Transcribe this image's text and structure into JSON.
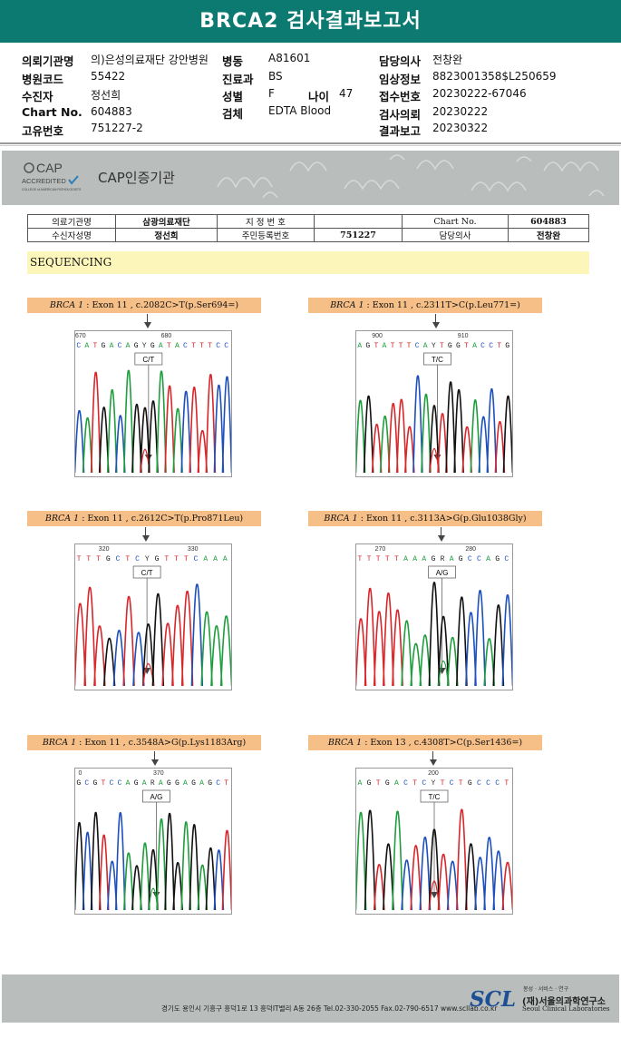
{
  "header": {
    "title": "BRCA2 검사결과보고서"
  },
  "patient_info": {
    "left": [
      {
        "label": "의뢰기관명",
        "value": "의)은성의료재단 강안병원"
      },
      {
        "label": "병원코드",
        "value": "55422"
      },
      {
        "label": "수진자",
        "value": "정선희"
      },
      {
        "label": "Chart No.",
        "value": "604883"
      },
      {
        "label": "고유번호",
        "value": "751227-2"
      }
    ],
    "middle": [
      {
        "label": "병동",
        "value": "A81601"
      },
      {
        "label": "진료과",
        "value": "BS"
      },
      {
        "label": "성별",
        "value": "F"
      },
      {
        "label": "검체",
        "value": "EDTA Blood"
      }
    ],
    "age": {
      "label": "나이",
      "value": "47"
    },
    "right": [
      {
        "label": "담당의사",
        "value": "전창완"
      },
      {
        "label": "임상정보",
        "value": "8823001358$L250659"
      },
      {
        "label": "접수번호",
        "value": "20230222-67046"
      },
      {
        "label": "검사의뢰",
        "value": "20230222"
      },
      {
        "label": "결과보고",
        "value": "20230322"
      }
    ]
  },
  "cap": {
    "logo_big": "CAP",
    "logo_accredited": "ACCREDITED",
    "logo_small": "COLLEGE of AMERICAN PATHOLOGISTS",
    "label": "CAP인증기관"
  },
  "report_table": {
    "row1": {
      "l1": "의료기관명",
      "v1": "삼광의료재단",
      "l2": "지 정 번 호",
      "v2": "",
      "l3": "Chart No.",
      "v3": "604883"
    },
    "row2": {
      "l1": "수신자성명",
      "v1": "정선희",
      "l2": "주민등록번호",
      "v2": "751227",
      "l3": "담당의사",
      "v3": "전창완"
    }
  },
  "sequencing": {
    "label": "SEQUENCING"
  },
  "panels": [
    {
      "gene": "BRCA 1",
      "desc": " : Exon 11 , c.2082C>T(p.Ser694=)",
      "seq": "CATGACAGYGATACTTTCC",
      "pos": [
        {
          "n": "670",
          "at": 0.0
        },
        {
          "n": "680",
          "at": 0.55
        }
      ],
      "call": "C/T",
      "mut_at": 0.47,
      "seed": 3
    },
    {
      "gene": "BRCA 1",
      "desc": " : Exon 11 , c.2311T>C(p.Leu771=)",
      "seq": "AGTATTTCAYTGGTACCTG",
      "pos": [
        {
          "n": "900",
          "at": 0.1
        },
        {
          "n": "910",
          "at": 0.65
        }
      ],
      "call": "T/C",
      "mut_at": 0.52,
      "seed": 7
    },
    {
      "gene": "BRCA 1",
      "desc": " : Exon 11 , c.2612C>T(p.Pro871Leu)",
      "seq": "TTTGCTCYGTTTCAAA",
      "pos": [
        {
          "n": "320",
          "at": 0.15
        },
        {
          "n": "330",
          "at": 0.72
        }
      ],
      "call": "C/T",
      "mut_at": 0.46,
      "seed": 11
    },
    {
      "gene": "BRCA 1",
      "desc": " : Exon 11 , c.3113A>G(p.Glu1038Gly)",
      "seq": "TTTTTAAAGRAGCCAGC",
      "pos": [
        {
          "n": "270",
          "at": 0.12
        },
        {
          "n": "280",
          "at": 0.7
        }
      ],
      "call": "A/G",
      "mut_at": 0.55,
      "seed": 5
    },
    {
      "gene": "BRCA 1",
      "desc": " : Exon 11 , c.3548A>G(p.Lys1183Arg)",
      "seq": "GCGTCCAGARAGGAGAGCT",
      "pos": [
        {
          "n": "0",
          "at": 0.02
        },
        {
          "n": "370",
          "at": 0.5
        }
      ],
      "call": "A/G",
      "mut_at": 0.52,
      "seed": 13
    },
    {
      "gene": "BRCA 1",
      "desc": " : Exon 13 , c.4308T>C(p.Ser1436=)",
      "seq": "AGTGACTCYTCTGCCCT",
      "pos": [
        {
          "n": "200",
          "at": 0.46
        }
      ],
      "call": "T/C",
      "mut_at": 0.5,
      "seed": 17
    }
  ],
  "footer": {
    "address": "경기도 용인시 기흥구 흥덕1로 13 흥덕IT밸리 A동 26층  Tel.02-330-2055  Fax.02-790-6517  www.scllab.co.kr",
    "logo": "SCL",
    "tagline": "봉성 · 서비스 · 연구",
    "name_ko": "(재)서울의과학연구소",
    "name_en": "Seoul Clinical Laboratories"
  },
  "colors": {
    "accent": "#0d7a72",
    "A": "#1e9e3c",
    "C": "#1d4fbd",
    "G": "#111111",
    "T": "#d8262a"
  }
}
